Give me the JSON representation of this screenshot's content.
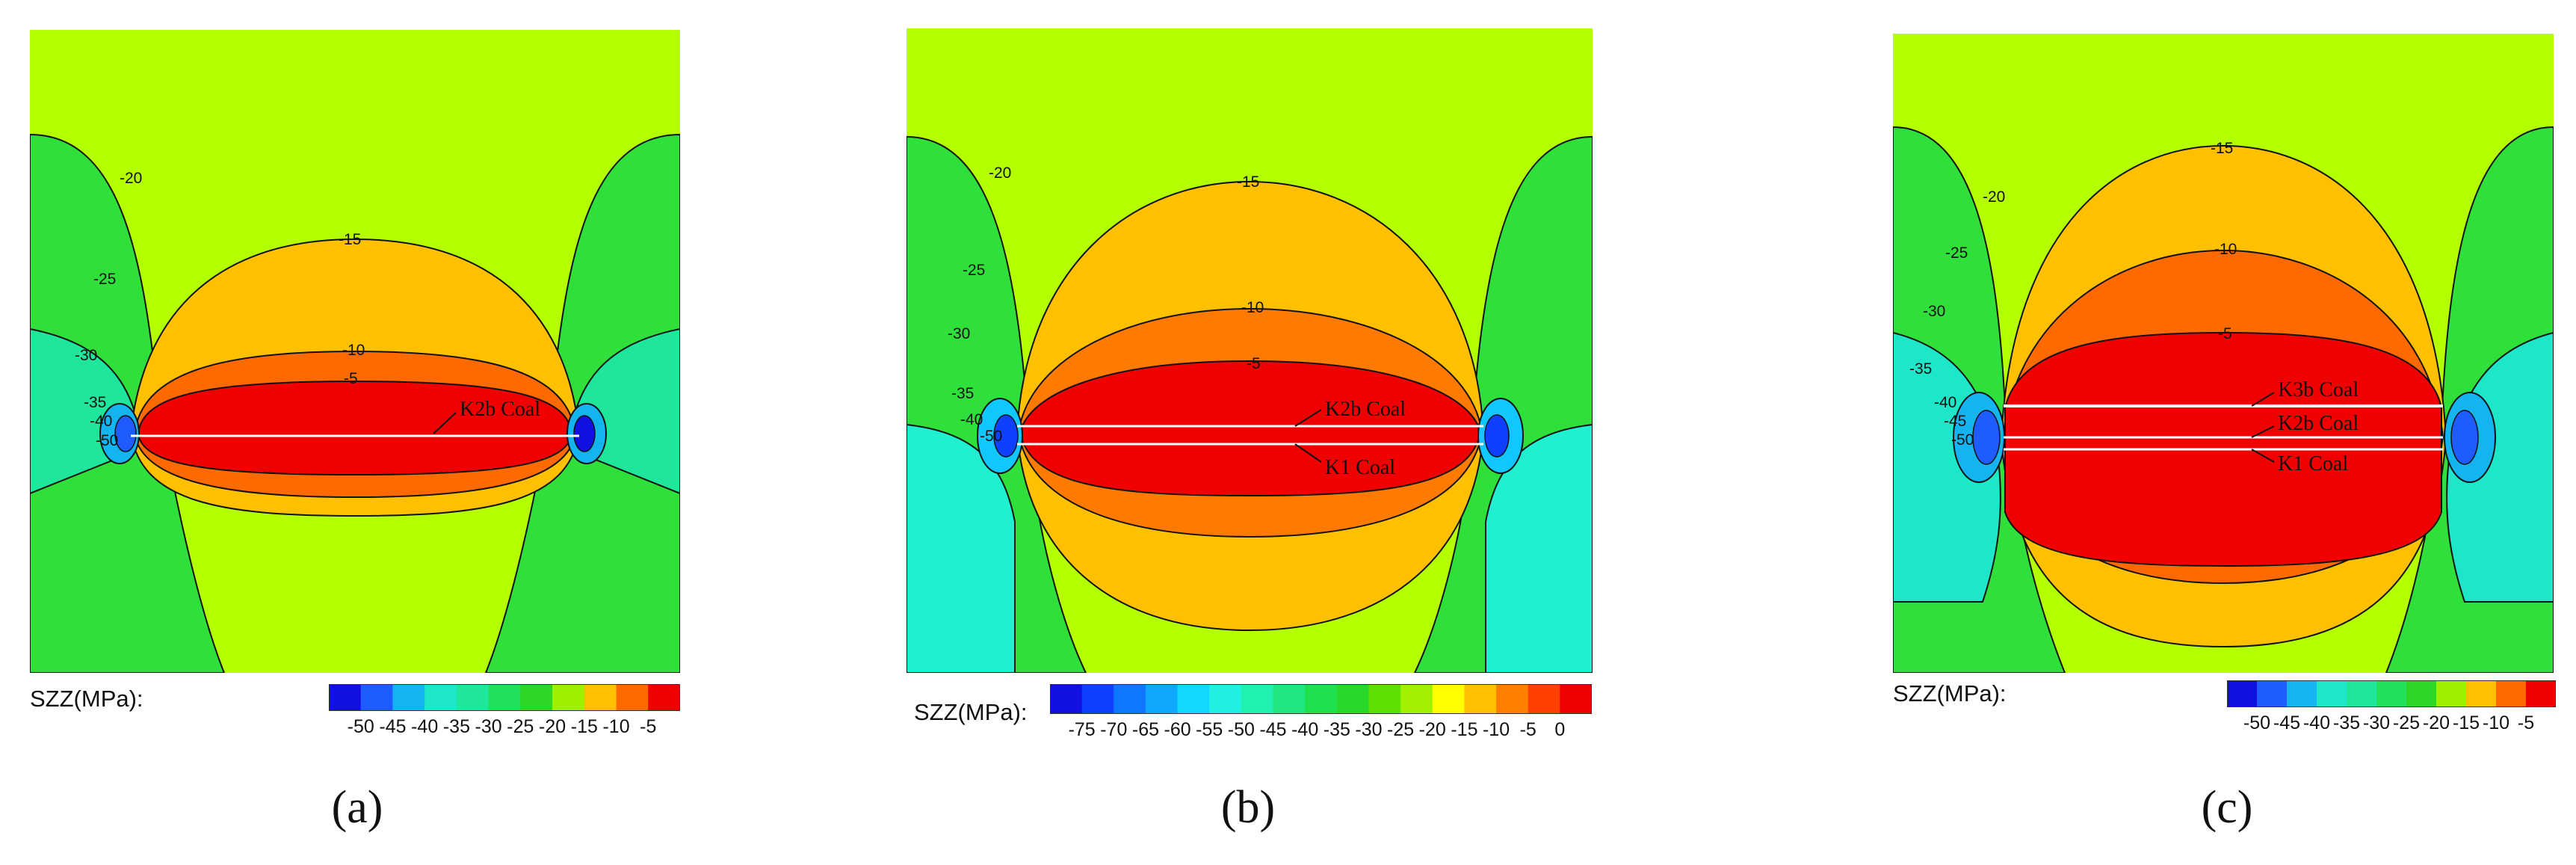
{
  "chart_data": [
    {
      "type": "contour",
      "panel_label": "(a)",
      "colorbar_label": "SZZ(MPa):",
      "colorbar_ticks": [
        "-50",
        "-45",
        "-40",
        "-35",
        "-30",
        "-25",
        "-20",
        "-15",
        "-10",
        "-5"
      ],
      "colorbar_colors": [
        "#1010e0",
        "#1f5cff",
        "#14b4f0",
        "#1ee6c8",
        "#1ee69a",
        "#22e05a",
        "#2ed626",
        "#9cf000",
        "#ffc000",
        "#ff6a00",
        "#f00000"
      ],
      "contour_labels": [
        "-20",
        "-25",
        "-30",
        "-35",
        "-40",
        "-50",
        "-15",
        "-10",
        "-5"
      ],
      "annotations": [
        "K2b Coal"
      ]
    },
    {
      "type": "contour",
      "panel_label": "(b)",
      "colorbar_label": "SZZ(MPa):",
      "colorbar_ticks": [
        "-75",
        "-70",
        "-65",
        "-60",
        "-55",
        "-50",
        "-45",
        "-40",
        "-35",
        "-30",
        "-25",
        "-20",
        "-15",
        "-10",
        "-5",
        "0"
      ],
      "colorbar_colors": [
        "#1010e0",
        "#1040ff",
        "#1078ff",
        "#10a8ff",
        "#10d8ff",
        "#20f0e0",
        "#20f0b0",
        "#20e880",
        "#20e050",
        "#28d828",
        "#60e000",
        "#a0f000",
        "#ffff00",
        "#ffc000",
        "#ff8000",
        "#ff4000",
        "#f00000"
      ],
      "contour_labels": [
        "-20",
        "-25",
        "-30",
        "-35",
        "-40",
        "-50",
        "-15",
        "-10",
        "-5"
      ],
      "annotations": [
        "K2b Coal",
        "K1   Coal"
      ]
    },
    {
      "type": "contour",
      "panel_label": "(c)",
      "colorbar_label": "SZZ(MPa):",
      "colorbar_ticks": [
        "-50",
        "-45",
        "-40",
        "-35",
        "-30",
        "-25",
        "-20",
        "-15",
        "-10",
        "-5"
      ],
      "colorbar_colors": [
        "#1010e0",
        "#1f5cff",
        "#14b4f0",
        "#1ee6c8",
        "#1ee69a",
        "#22e05a",
        "#2ed626",
        "#9cf000",
        "#ffc000",
        "#ff6a00",
        "#f00000"
      ],
      "contour_labels": [
        "-20",
        "-25",
        "-30",
        "-35",
        "-40",
        "-45",
        "-50",
        "-15",
        "-10",
        "-5"
      ],
      "annotations": [
        "K3b Coal",
        "K2b Coal",
        "K1   Coal"
      ]
    }
  ]
}
